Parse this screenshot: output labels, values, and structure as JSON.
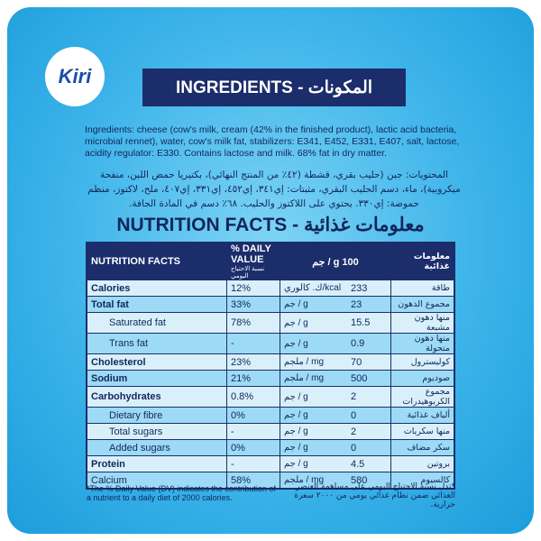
{
  "brand": "Kiri",
  "ingredients": {
    "title": "INGREDIENTS - المكونات",
    "english": "Ingredients: cheese (cow's milk, cream (42% in the finished product), lactic acid bacteria, microbial rennet), water, cow's milk fat, stabilizers: E341, E452, E331, E407, salt, lactose, acidity regulator: E330. Contains lactose and milk. 68% fat in dry matter.",
    "arabic": "المحتويات: جبن (حليب بقري، قشطة (٤٢٪ من المنتج النهائي)، بكتيريا حمض اللبن، منفحة ميكروبية)، ماء، دسم الحليب البقري، مثبتات: إي٣٤١، إي٤٥٢، إي٣٣١، إي٤٠٧، ملح، لاكتوز، منظم حموضة: إي٣٣٠. يحتوي على اللاكتوز والحليب. ٦٨٪ دسم في المادة الجافة."
  },
  "nutrition": {
    "title": "NUTRITION FACTS - معلومات غذائية",
    "header": {
      "name": "NUTRITION FACTS",
      "dv": "% DAILY VALUE",
      "dv_arabic": "نسبة الاحتياج اليومي",
      "per": "جم / g 100",
      "name_arabic": "معلومات غذائية"
    },
    "rows": [
      {
        "name": "Calories",
        "dv": "12%",
        "unit": "ك. كالوري/kcal",
        "value": "233",
        "arabic": "طاقة",
        "style": "main"
      },
      {
        "name": "Total fat",
        "dv": "33%",
        "unit": "جم / g",
        "value": "23",
        "arabic": "مجموع الدهون",
        "style": "main"
      },
      {
        "name": "Saturated fat",
        "dv": "78%",
        "unit": "جم / g",
        "value": "15.5",
        "arabic": "منها دهون مشبعة",
        "style": "sub"
      },
      {
        "name": "Trans fat",
        "dv": "-",
        "unit": "جم / g",
        "value": "0.9",
        "arabic": "منها دهون متحولة",
        "style": "sub"
      },
      {
        "name": "Cholesterol",
        "dv": "23%",
        "unit": "ملجم / mg",
        "value": "70",
        "arabic": "كوليسترول",
        "style": "main"
      },
      {
        "name": "Sodium",
        "dv": "21%",
        "unit": "ملجم / mg",
        "value": "500",
        "arabic": "صوديوم",
        "style": "main"
      },
      {
        "name": "Carbohydrates",
        "dv": "0.8%",
        "unit": "جم / g",
        "value": "2",
        "arabic": "مجموع الكربوهيدرات",
        "style": "main"
      },
      {
        "name": "Dietary fibre",
        "dv": "0%",
        "unit": "جم / g",
        "value": "0",
        "arabic": "ألياف غذائية",
        "style": "sub"
      },
      {
        "name": "Total sugars",
        "dv": "-",
        "unit": "جم / g",
        "value": "2",
        "arabic": "منها سكريات",
        "style": "sub"
      },
      {
        "name": "Added sugars",
        "dv": "0%",
        "unit": "جم / g",
        "value": "0",
        "arabic": "سكر مضاف",
        "style": "sub"
      },
      {
        "name": "Protein",
        "dv": "-",
        "unit": "جم / g",
        "value": "4.5",
        "arabic": "بروتين",
        "style": "main"
      },
      {
        "name": "Calcium",
        "dv": "58%",
        "unit": "ملجم / mg",
        "value": "580",
        "arabic": "كالسيوم",
        "style": "plain"
      }
    ],
    "footnote": "*The % Daily Value (DV) indicates the contribution of a nutrient to a daily diet of 2000 calories.",
    "footnote_arabic": "*تدل نسبة الاحتياج اليومي على مساهمة العنصر الغذائي ضمن نظام غذائي يومي من ٢٠٠٠ سعرة حرارية."
  }
}
